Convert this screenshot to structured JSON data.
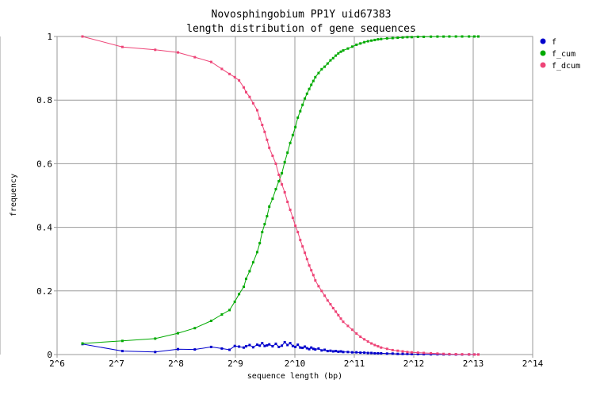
{
  "chart_data": {
    "type": "line",
    "title": "Novosphingobium PP1Y uid67383",
    "subtitle": "length distribution of gene sequences",
    "xlabel": "sequence length (bp)",
    "ylabel": "frequency",
    "x_scale": "log2",
    "xlim": [
      64,
      16384
    ],
    "ylim": [
      0,
      1
    ],
    "x_ticks": [
      "2^6",
      "2^7",
      "2^8",
      "2^9",
      "2^10",
      "2^11",
      "2^12",
      "2^13",
      "2^14"
    ],
    "y_ticks": [
      "0",
      "0.2",
      "0.4",
      "0.6",
      "0.8",
      "1"
    ],
    "grid": true,
    "legend_position": "right",
    "series": [
      {
        "name": "f",
        "color": "#0000cc",
        "x": [
          86,
          137,
          201,
          262,
          319,
          386,
          437,
          478,
          508,
          534,
          564,
          580,
          604,
          630,
          660,
          680,
          700,
          720,
          740,
          760,
          790,
          820,
          850,
          880,
          910,
          940,
          970,
          1000,
          1030,
          1060,
          1090,
          1120,
          1150,
          1180,
          1210,
          1240,
          1270,
          1300,
          1350,
          1400,
          1450,
          1500,
          1550,
          1600,
          1650,
          1700,
          1750,
          1800,
          1900,
          2000,
          2100,
          2200,
          2300,
          2400,
          2500,
          2600,
          2700,
          2800,
          3000,
          3200,
          3400,
          3600,
          3800,
          4000,
          4300,
          4600,
          5000,
          5400,
          5800,
          6200,
          6700,
          7200,
          7800,
          8300,
          8700
        ],
        "y": [
          0.033,
          0.011,
          0.008,
          0.017,
          0.016,
          0.024,
          0.019,
          0.015,
          0.027,
          0.025,
          0.022,
          0.026,
          0.03,
          0.023,
          0.031,
          0.028,
          0.036,
          0.027,
          0.029,
          0.032,
          0.026,
          0.034,
          0.024,
          0.028,
          0.039,
          0.03,
          0.036,
          0.027,
          0.024,
          0.031,
          0.022,
          0.021,
          0.025,
          0.02,
          0.017,
          0.022,
          0.018,
          0.016,
          0.019,
          0.013,
          0.015,
          0.011,
          0.012,
          0.01,
          0.011,
          0.009,
          0.01,
          0.008,
          0.008,
          0.007,
          0.007,
          0.006,
          0.006,
          0.005,
          0.005,
          0.004,
          0.004,
          0.004,
          0.003,
          0.003,
          0.002,
          0.002,
          0.002,
          0.0015,
          0.0012,
          0.001,
          0.0008,
          0.0007,
          0.0005,
          0.0004,
          0.0003,
          0.0003,
          0.0002,
          0.0002,
          0.0002
        ]
      },
      {
        "name": "f_cum",
        "color": "#00aa00",
        "x": [
          86,
          137,
          201,
          262,
          319,
          386,
          437,
          478,
          508,
          534,
          564,
          580,
          604,
          630,
          660,
          680,
          700,
          720,
          740,
          760,
          790,
          820,
          850,
          880,
          910,
          940,
          970,
          1000,
          1030,
          1060,
          1090,
          1120,
          1150,
          1180,
          1210,
          1240,
          1270,
          1300,
          1350,
          1400,
          1450,
          1500,
          1550,
          1600,
          1650,
          1700,
          1750,
          1800,
          1900,
          2000,
          2100,
          2200,
          2300,
          2400,
          2500,
          2600,
          2700,
          2800,
          3000,
          3200,
          3400,
          3600,
          3800,
          4000,
          4300,
          4600,
          5000,
          5400,
          5800,
          6200,
          6700,
          7200,
          7800,
          8300,
          8700
        ],
        "y": [
          0.035,
          0.043,
          0.05,
          0.067,
          0.083,
          0.106,
          0.126,
          0.14,
          0.166,
          0.19,
          0.213,
          0.238,
          0.262,
          0.29,
          0.322,
          0.35,
          0.385,
          0.41,
          0.435,
          0.465,
          0.49,
          0.52,
          0.545,
          0.57,
          0.605,
          0.635,
          0.665,
          0.69,
          0.715,
          0.745,
          0.765,
          0.785,
          0.805,
          0.82,
          0.835,
          0.848,
          0.86,
          0.872,
          0.885,
          0.897,
          0.905,
          0.915,
          0.925,
          0.932,
          0.94,
          0.947,
          0.952,
          0.956,
          0.962,
          0.968,
          0.974,
          0.978,
          0.982,
          0.985,
          0.987,
          0.989,
          0.991,
          0.992,
          0.994,
          0.995,
          0.996,
          0.997,
          0.998,
          0.998,
          0.999,
          0.999,
          0.9995,
          0.9997,
          0.9998,
          0.9999,
          1,
          1,
          1,
          1,
          1
        ]
      },
      {
        "name": "f_dcum",
        "color": "#ee4477",
        "x": [
          86,
          137,
          201,
          262,
          319,
          386,
          437,
          478,
          508,
          534,
          564,
          580,
          604,
          630,
          660,
          680,
          700,
          720,
          740,
          760,
          790,
          820,
          850,
          880,
          910,
          940,
          970,
          1000,
          1030,
          1060,
          1090,
          1120,
          1150,
          1180,
          1210,
          1240,
          1270,
          1300,
          1350,
          1400,
          1450,
          1500,
          1550,
          1600,
          1650,
          1700,
          1750,
          1800,
          1900,
          2000,
          2100,
          2200,
          2300,
          2400,
          2500,
          2600,
          2700,
          2800,
          3000,
          3200,
          3400,
          3600,
          3800,
          4000,
          4300,
          4600,
          5000,
          5400,
          5800,
          6200,
          6700,
          7200,
          7800,
          8300,
          8700
        ],
        "y": [
          1,
          0.967,
          0.958,
          0.95,
          0.935,
          0.92,
          0.898,
          0.882,
          0.872,
          0.862,
          0.84,
          0.825,
          0.81,
          0.79,
          0.768,
          0.742,
          0.722,
          0.7,
          0.675,
          0.65,
          0.625,
          0.6,
          0.565,
          0.535,
          0.51,
          0.48,
          0.455,
          0.43,
          0.405,
          0.385,
          0.36,
          0.34,
          0.32,
          0.3,
          0.28,
          0.265,
          0.25,
          0.233,
          0.215,
          0.2,
          0.185,
          0.17,
          0.158,
          0.146,
          0.135,
          0.124,
          0.113,
          0.103,
          0.09,
          0.078,
          0.066,
          0.056,
          0.048,
          0.041,
          0.035,
          0.03,
          0.026,
          0.022,
          0.018,
          0.014,
          0.012,
          0.01,
          0.008,
          0.007,
          0.006,
          0.005,
          0.004,
          0.003,
          0.002,
          0.0015,
          0.001,
          0.0007,
          0.0005,
          0.0003,
          0
        ]
      }
    ]
  }
}
